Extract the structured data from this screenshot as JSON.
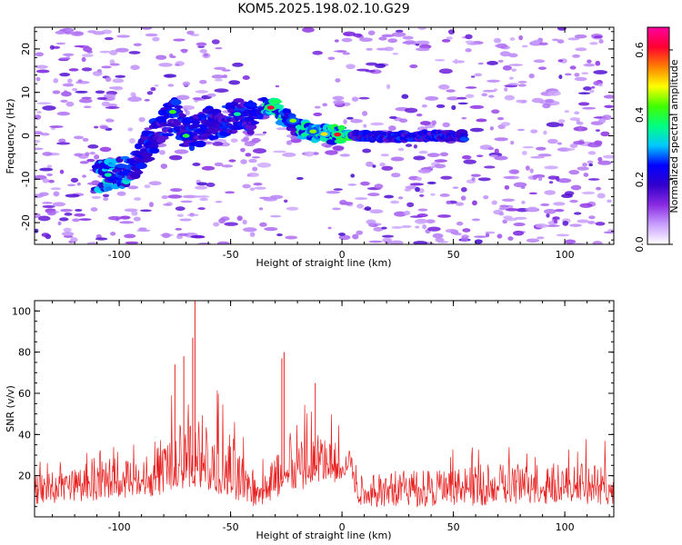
{
  "title": "KOM5.2025.198.02.10.G29",
  "chart_data": [
    {
      "type": "heatmap",
      "title": "KOM5.2025.198.02.10.G29",
      "xlabel": "Height of straight line (km)",
      "ylabel": "Frequency (Hz)",
      "xlim": [
        -138,
        122
      ],
      "ylim": [
        -25,
        25
      ],
      "xticks": [
        -100,
        -50,
        0,
        50,
        100
      ],
      "yticks": [
        -20,
        -10,
        0,
        10,
        20
      ],
      "colorbar": {
        "label": "Normalized spectral amplitude",
        "range": [
          0,
          0.67
        ],
        "ticks": [
          0.0,
          0.2,
          0.4,
          0.6
        ],
        "colors": [
          "#ffffff",
          "#c9a0ff",
          "#8a2be2",
          "#3300cc",
          "#0000ff",
          "#00c8ff",
          "#00ff80",
          "#40ff00",
          "#ffff00",
          "#ff8000",
          "#ff0030",
          "#ff00a0"
        ]
      },
      "trace": {
        "x": [
          -110,
          -100,
          -95,
          -80,
          -75,
          -70,
          -65,
          -60,
          -55,
          -50,
          -45,
          -40,
          -35,
          -32,
          -30,
          -28,
          -25,
          -20,
          -15,
          -10,
          -5,
          0,
          5,
          10,
          20,
          30,
          40,
          50,
          55
        ],
        "y": [
          -9,
          -9,
          -8,
          3,
          5,
          0,
          1,
          3,
          2,
          4,
          5,
          4,
          7,
          6.5,
          7,
          5,
          4,
          2,
          1,
          0.5,
          0.3,
          0.2,
          0.2,
          0,
          -0.3,
          -0.2,
          0,
          0,
          0
        ],
        "peak": {
          "x": -32,
          "y": 6.5,
          "value": 0.62
        }
      },
      "noise_level": 0.05,
      "grid": false
    },
    {
      "type": "line",
      "xlabel": "Height of straight line (km)",
      "ylabel": "SNR (v/v)",
      "xlim": [
        -138,
        122
      ],
      "ylim": [
        0,
        105
      ],
      "xticks": [
        -100,
        -50,
        0,
        50,
        100
      ],
      "yticks": [
        20,
        40,
        60,
        80,
        100
      ],
      "series": [
        {
          "color": "#e82020",
          "x_step": 0.25,
          "envelope": {
            "x": [
              -138,
              -115,
              -100,
              -95,
              -85,
              -78,
              -72,
              -68,
              -66,
              -62,
              -55,
              -50,
              -45,
              -40,
              -35,
              -28,
              -25,
              -20,
              -15,
              -10,
              -5,
              0,
              5,
              6,
              20,
              50,
              80,
              100,
              122
            ],
            "base": [
              14,
              15,
              17,
              17,
              18,
              19,
              20,
              22,
              22,
              21,
              19,
              17,
              15,
              13,
              13,
              16,
              22,
              20,
              22,
              24,
              24,
              25,
              25,
              12,
              13,
              13,
              14,
              14,
              14
            ],
            "peak": [
              28,
              32,
              48,
              38,
              45,
              60,
              72,
              78,
              85,
              70,
              65,
              55,
              45,
              30,
              30,
              50,
              75,
              55,
              62,
              60,
              55,
              50,
              48,
              32,
              32,
              34,
              38,
              38,
              38
            ]
          },
          "highlights": [
            {
              "x": -66,
              "y": 105
            },
            {
              "x": -67,
              "y": 87
            },
            {
              "x": -26,
              "y": 80
            },
            {
              "x": -27,
              "y": 77
            },
            {
              "x": -71,
              "y": 78
            },
            {
              "x": -75,
              "y": 74
            },
            {
              "x": -12,
              "y": 65
            }
          ]
        }
      ],
      "grid": false
    }
  ]
}
